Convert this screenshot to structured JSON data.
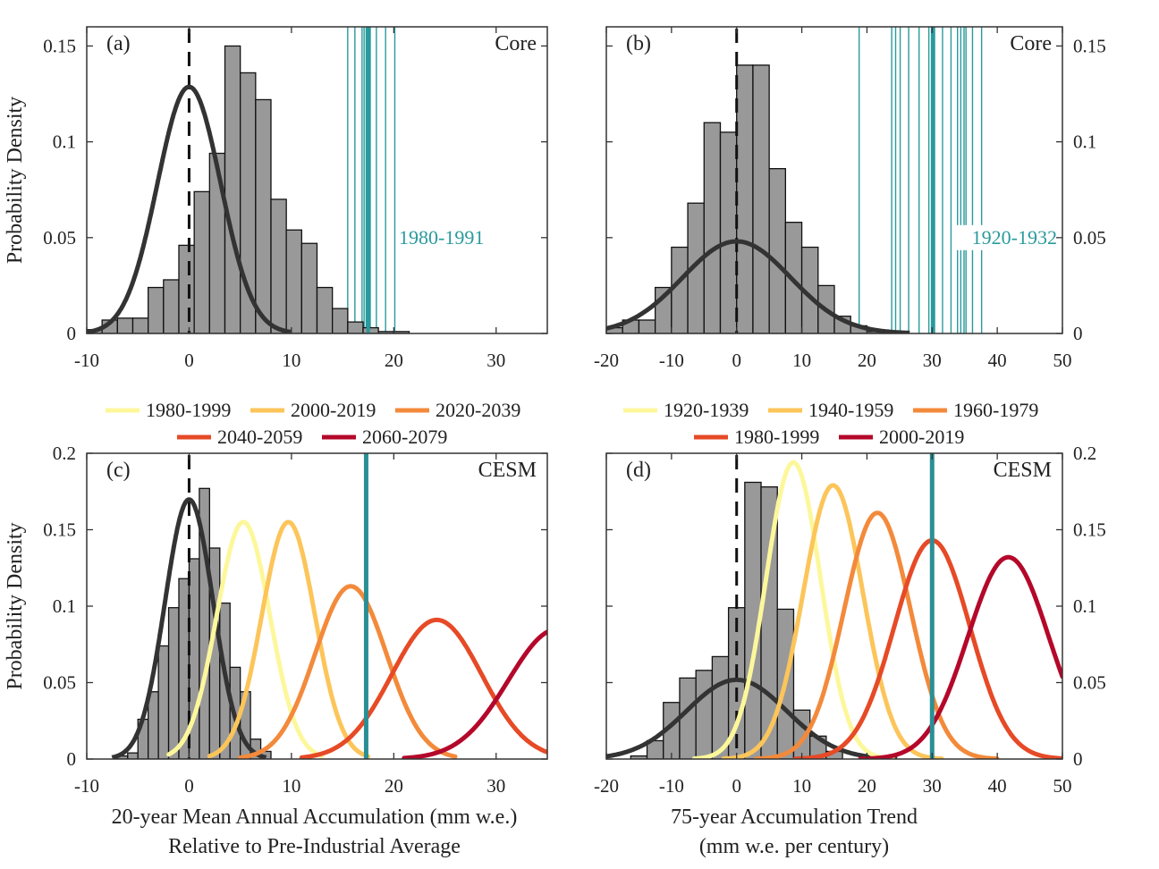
{
  "chart_data": [
    {
      "id": "a",
      "type": "histogram",
      "panel_label": "(a)",
      "corner_label": "Core",
      "ylabel": "Probability Density",
      "xlim": [
        -10,
        35
      ],
      "ylim": [
        0,
        0.16
      ],
      "xticks": [
        -10,
        0,
        10,
        20,
        30
      ],
      "yticks": [
        0,
        0.05,
        0.1,
        0.15
      ],
      "ytick_labels": [
        "0",
        "0.05",
        "0.1",
        "0.15"
      ],
      "yaxis_side": "left",
      "bin_width": 1.5,
      "bin_start": -10,
      "bins": [
        0.002,
        0.007,
        0.008,
        0.008,
        0.024,
        0.028,
        0.046,
        0.074,
        0.094,
        0.15,
        0.136,
        0.122,
        0.07,
        0.054,
        0.047,
        0.024,
        0.013,
        0.006,
        0.003,
        0.001,
        0.001
      ],
      "fit": {
        "mean": 0,
        "sd": 3.1
      },
      "dashed_mean": 0,
      "observations": {
        "label": "1980-1991",
        "color": "#2a9a9c",
        "values": [
          15.5,
          16.2,
          16.9,
          17.1,
          17.3,
          17.5,
          17.7,
          18.3,
          19.2,
          20.1
        ],
        "label_x": 20.5,
        "label_y": 0.05
      }
    },
    {
      "id": "b",
      "type": "histogram",
      "panel_label": "(b)",
      "corner_label": "Core",
      "xlim": [
        -20,
        50
      ],
      "ylim": [
        0,
        0.16
      ],
      "xticks": [
        -20,
        -10,
        0,
        10,
        20,
        30,
        40,
        50
      ],
      "yticks": [
        0,
        0.05,
        0.1,
        0.15
      ],
      "ytick_labels": [
        "0",
        "0.05",
        "0.1",
        "0.15"
      ],
      "yaxis_side": "right",
      "bin_width": 2.5,
      "bin_start": -20,
      "bins": [
        0.003,
        0.007,
        0.007,
        0.024,
        0.045,
        0.068,
        0.11,
        0.105,
        0.14,
        0.14,
        0.086,
        0.058,
        0.045,
        0.025,
        0.009,
        0.004,
        0.001
      ],
      "fit": {
        "mean": 0,
        "sd": 8.3
      },
      "dashed_mean": 0,
      "observations": {
        "label": "1920-1932",
        "color": "#2a9a9c",
        "values": [
          18.8,
          23.8,
          24.4,
          25.1,
          26.4,
          28.0,
          29.5,
          29.9,
          30.2,
          31.6,
          32.9,
          33.9,
          34.4,
          34.9,
          35.2,
          36.2,
          37.6
        ],
        "label_x": 24,
        "label_y": 0.05
      }
    },
    {
      "id": "c",
      "type": "histogram",
      "panel_label": "(c)",
      "corner_label": "CESM",
      "ylabel": "Probability Density",
      "xlabel": "20-year Mean Annual Accumulation (mm w.e.)\nRelative to Pre-Industrial Average",
      "xlim": [
        -10,
        35
      ],
      "ylim": [
        0,
        0.2
      ],
      "xticks": [
        -10,
        0,
        10,
        20,
        30
      ],
      "yticks": [
        0,
        0.05,
        0.1,
        0.15,
        0.2
      ],
      "ytick_labels": [
        "0",
        "0.05",
        "0.1",
        "0.15",
        "0.2"
      ],
      "yaxis_side": "left",
      "bin_width": 1,
      "bin_start": -7,
      "bins": [
        0.002,
        0.004,
        0.026,
        0.044,
        0.074,
        0.099,
        0.118,
        0.131,
        0.177,
        0.138,
        0.102,
        0.06,
        0.044,
        0.013,
        0.005
      ],
      "fit": {
        "mean": 0,
        "sd": 2.35
      },
      "dashed_mean": 0,
      "observation_line": {
        "value": 17.3,
        "color": "#2a8f95"
      },
      "legend": [
        {
          "label": "1980-1999",
          "color": "#fdf79c"
        },
        {
          "label": "2000-2019",
          "color": "#fcc55a"
        },
        {
          "label": "2020-2039",
          "color": "#f38a3b"
        },
        {
          "label": "2040-2059",
          "color": "#e64a26"
        },
        {
          "label": "2060-2079",
          "color": "#b4082a"
        }
      ],
      "series": [
        {
          "name": "1980-1999",
          "mean": 5.3,
          "sd": 2.6,
          "peak": 0.155,
          "range": [
            -2,
            13
          ]
        },
        {
          "name": "2000-2019",
          "mean": 9.7,
          "sd": 2.6,
          "peak": 0.155,
          "range": [
            2,
            17.5
          ]
        },
        {
          "name": "2020-2039",
          "mean": 15.8,
          "sd": 3.5,
          "peak": 0.113,
          "range": [
            5,
            26
          ]
        },
        {
          "name": "2040-2059",
          "mean": 24.2,
          "sd": 4.4,
          "peak": 0.091,
          "range": [
            11,
            35
          ]
        },
        {
          "name": "2060-2079",
          "mean": 36,
          "sd": 4.8,
          "peak": 0.085,
          "range": [
            21,
            35
          ]
        }
      ]
    },
    {
      "id": "d",
      "type": "histogram",
      "panel_label": "(d)",
      "corner_label": "CESM",
      "xlabel": "75-year Accumulation Trend\n(mm w.e. per century)",
      "xlim": [
        -20,
        50
      ],
      "ylim": [
        0,
        0.2
      ],
      "xticks": [
        -20,
        -10,
        0,
        10,
        20,
        30,
        40,
        50
      ],
      "yticks": [
        0,
        0.05,
        0.1,
        0.15,
        0.2
      ],
      "ytick_labels": [
        "0",
        "0.05",
        "0.1",
        "0.15",
        "0.2"
      ],
      "yaxis_side": "right",
      "bin_width": 2.5,
      "bin_start": -16.25,
      "bins": [
        0.002,
        0.012,
        0.037,
        0.053,
        0.058,
        0.067,
        0.099,
        0.181,
        0.178,
        0.098,
        0.032,
        0.015,
        0.005
      ],
      "fit": {
        "mean": 0,
        "sd": 7.7
      },
      "dashed_mean": 0,
      "observation_line": {
        "value": 30,
        "color": "#2a8f95"
      },
      "legend": [
        {
          "label": "1920-1939",
          "color": "#fdf79c"
        },
        {
          "label": "1940-1959",
          "color": "#fcc55a"
        },
        {
          "label": "1960-1979",
          "color": "#f38a3b"
        },
        {
          "label": "1980-1999",
          "color": "#e64a26"
        },
        {
          "label": "2000-2019",
          "color": "#b4082a"
        }
      ],
      "series": [
        {
          "name": "1920-1939",
          "mean": 8.7,
          "sd": 4.2,
          "peak": 0.194,
          "range": [
            -6.5,
            24
          ]
        },
        {
          "name": "1940-1959",
          "mean": 14.8,
          "sd": 4.6,
          "peak": 0.179,
          "range": [
            -2,
            31.5
          ]
        },
        {
          "name": "1960-1979",
          "mean": 21.6,
          "sd": 5.1,
          "peak": 0.161,
          "range": [
            3,
            40
          ]
        },
        {
          "name": "1980-1999",
          "mean": 30,
          "sd": 5.8,
          "peak": 0.143,
          "range": [
            9,
            50
          ]
        },
        {
          "name": "2000-2019",
          "mean": 41.7,
          "sd": 6.2,
          "peak": 0.132,
          "range": [
            19,
            50
          ]
        }
      ]
    }
  ]
}
